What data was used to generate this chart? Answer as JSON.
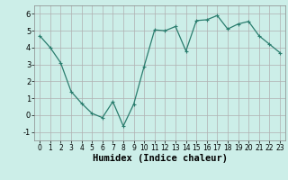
{
  "x": [
    0,
    1,
    2,
    3,
    4,
    5,
    6,
    7,
    8,
    9,
    10,
    11,
    12,
    13,
    14,
    15,
    16,
    17,
    18,
    19,
    20,
    21,
    22,
    23
  ],
  "y": [
    4.7,
    4.0,
    3.1,
    1.4,
    0.7,
    0.1,
    -0.15,
    0.8,
    -0.65,
    0.65,
    2.9,
    5.05,
    5.0,
    5.25,
    3.8,
    5.6,
    5.65,
    5.9,
    5.1,
    5.4,
    5.55,
    4.7,
    4.2,
    3.7
  ],
  "line_color": "#2a7d6e",
  "marker": "+",
  "markersize": 3,
  "linewidth": 0.9,
  "background_color": "#cceee8",
  "grid_color": "#b0b0b0",
  "xlabel": "Humidex (Indice chaleur)",
  "xlim": [
    -0.5,
    23.5
  ],
  "ylim": [
    -1.5,
    6.5
  ],
  "yticks": [
    -1,
    0,
    1,
    2,
    3,
    4,
    5,
    6
  ],
  "xticks": [
    0,
    1,
    2,
    3,
    4,
    5,
    6,
    7,
    8,
    9,
    10,
    11,
    12,
    13,
    14,
    15,
    16,
    17,
    18,
    19,
    20,
    21,
    22,
    23
  ]
}
